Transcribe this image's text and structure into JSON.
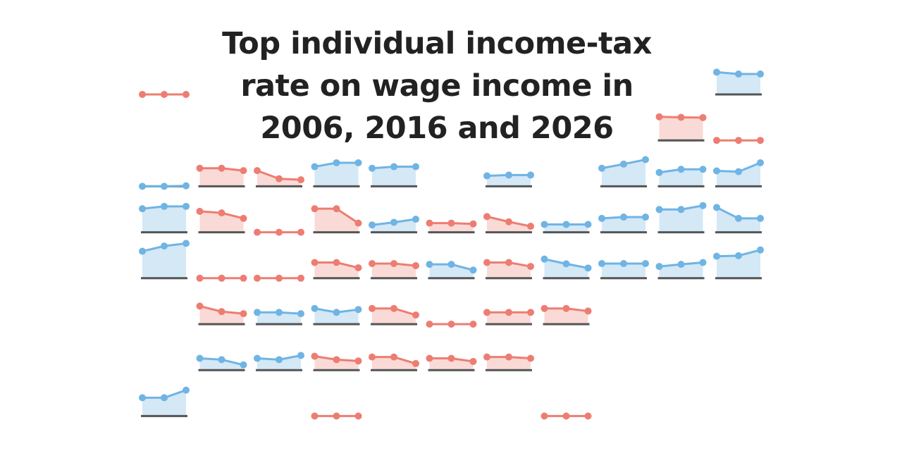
{
  "title_lines": [
    "Top individual income-tax",
    "rate on wage income in",
    "2006, 2016 and 2026"
  ],
  "colors": {
    "increase_line": "#6fb4e4",
    "increase_fill": "#d4e8f6",
    "decrease_line": "#ed7d72",
    "decrease_fill": "#fadad6",
    "baseline": "#555555"
  },
  "chart_data": {
    "type": "line",
    "x": [
      "2006",
      "2016",
      "2026"
    ],
    "ylim": [
      0,
      14
    ],
    "grid": false,
    "legend": "none",
    "tiles": [
      {
        "row": 0,
        "col": 0,
        "values": [
          0,
          0,
          0
        ],
        "change": "none"
      },
      {
        "row": 0,
        "col": 10,
        "values": [
          8.5,
          7.8,
          7.8
        ],
        "change": "up"
      },
      {
        "row": 1,
        "col": 9,
        "values": [
          9.0,
          8.8,
          8.7
        ],
        "change": "down"
      },
      {
        "row": 1,
        "col": 10,
        "values": [
          0,
          0,
          0
        ],
        "change": "none"
      },
      {
        "row": 2,
        "col": 0,
        "values": [
          0.0,
          0.0,
          0.2
        ],
        "change": "up"
      },
      {
        "row": 2,
        "col": 1,
        "values": [
          6.9,
          6.9,
          6.0
        ],
        "change": "down"
      },
      {
        "row": 2,
        "col": 2,
        "values": [
          6.0,
          2.9,
          2.5
        ],
        "change": "down"
      },
      {
        "row": 2,
        "col": 3,
        "values": [
          7.5,
          9.0,
          9.0
        ],
        "change": "up"
      },
      {
        "row": 2,
        "col": 4,
        "values": [
          6.9,
          7.5,
          7.5
        ],
        "change": "up"
      },
      {
        "row": 2,
        "col": 6,
        "values": [
          4.0,
          4.3,
          4.3
        ],
        "change": "up"
      },
      {
        "row": 2,
        "col": 8,
        "values": [
          6.9,
          8.5,
          10.2
        ],
        "change": "up"
      },
      {
        "row": 2,
        "col": 9,
        "values": [
          5.3,
          6.5,
          6.5
        ],
        "change": "up"
      },
      {
        "row": 2,
        "col": 10,
        "values": [
          5.9,
          5.6,
          9.0
        ],
        "change": "up"
      },
      {
        "row": 3,
        "col": 0,
        "values": [
          9.0,
          9.9,
          9.9
        ],
        "change": "up"
      },
      {
        "row": 3,
        "col": 1,
        "values": [
          8.0,
          7.4,
          5.3
        ],
        "change": "down"
      },
      {
        "row": 3,
        "col": 2,
        "values": [
          0,
          0,
          0
        ],
        "change": "none"
      },
      {
        "row": 3,
        "col": 3,
        "values": [
          9.0,
          9.0,
          3.5
        ],
        "change": "down"
      },
      {
        "row": 3,
        "col": 4,
        "values": [
          2.8,
          3.8,
          5.0
        ],
        "change": "up"
      },
      {
        "row": 3,
        "col": 5,
        "values": [
          3.5,
          3.5,
          3.2
        ],
        "change": "down"
      },
      {
        "row": 3,
        "col": 6,
        "values": [
          6.0,
          4.0,
          2.3
        ],
        "change": "down"
      },
      {
        "row": 3,
        "col": 7,
        "values": [
          3.0,
          3.0,
          3.0
        ],
        "change": "up"
      },
      {
        "row": 3,
        "col": 8,
        "values": [
          5.3,
          5.8,
          5.8
        ],
        "change": "up"
      },
      {
        "row": 3,
        "col": 9,
        "values": [
          8.7,
          8.7,
          10.2
        ],
        "change": "up"
      },
      {
        "row": 3,
        "col": 10,
        "values": [
          9.5,
          5.3,
          5.3
        ],
        "change": "up"
      },
      {
        "row": 4,
        "col": 0,
        "values": [
          10.3,
          12.3,
          13.3
        ],
        "change": "up"
      },
      {
        "row": 4,
        "col": 1,
        "values": [
          0,
          0,
          0
        ],
        "change": "none"
      },
      {
        "row": 4,
        "col": 2,
        "values": [
          0,
          0,
          0
        ],
        "change": "none"
      },
      {
        "row": 4,
        "col": 3,
        "values": [
          6.0,
          6.0,
          4.0
        ],
        "change": "down"
      },
      {
        "row": 4,
        "col": 4,
        "values": [
          5.6,
          5.6,
          4.8
        ],
        "change": "down"
      },
      {
        "row": 4,
        "col": 5,
        "values": [
          5.3,
          5.3,
          3.1
        ],
        "change": "up"
      },
      {
        "row": 4,
        "col": 6,
        "values": [
          6.0,
          6.0,
          4.5
        ],
        "change": "down"
      },
      {
        "row": 4,
        "col": 7,
        "values": [
          7.3,
          5.5,
          3.9
        ],
        "change": "up"
      },
      {
        "row": 4,
        "col": 8,
        "values": [
          5.6,
          5.6,
          5.6
        ],
        "change": "up"
      },
      {
        "row": 4,
        "col": 9,
        "values": [
          4.5,
          5.3,
          6.0
        ],
        "change": "up"
      },
      {
        "row": 4,
        "col": 10,
        "values": [
          8.4,
          8.6,
          10.8
        ],
        "change": "up"
      },
      {
        "row": 5,
        "col": 1,
        "values": [
          6.9,
          4.8,
          4.0
        ],
        "change": "down"
      },
      {
        "row": 5,
        "col": 2,
        "values": [
          4.5,
          4.5,
          4.0
        ],
        "change": "up"
      },
      {
        "row": 5,
        "col": 3,
        "values": [
          6.0,
          4.5,
          5.6
        ],
        "change": "up"
      },
      {
        "row": 5,
        "col": 4,
        "values": [
          6.0,
          6.0,
          3.5
        ],
        "change": "down"
      },
      {
        "row": 5,
        "col": 5,
        "values": [
          0,
          0,
          0
        ],
        "change": "none"
      },
      {
        "row": 5,
        "col": 6,
        "values": [
          4.5,
          4.5,
          4.5
        ],
        "change": "down"
      },
      {
        "row": 5,
        "col": 7,
        "values": [
          6.0,
          6.0,
          5.0
        ],
        "change": "down"
      },
      {
        "row": 6,
        "col": 1,
        "values": [
          4.5,
          4.0,
          2.0
        ],
        "change": "up"
      },
      {
        "row": 6,
        "col": 2,
        "values": [
          4.5,
          4.0,
          5.6
        ],
        "change": "up"
      },
      {
        "row": 6,
        "col": 3,
        "values": [
          5.3,
          4.0,
          3.5
        ],
        "change": "down"
      },
      {
        "row": 6,
        "col": 4,
        "values": [
          5.0,
          5.0,
          2.5
        ],
        "change": "down"
      },
      {
        "row": 6,
        "col": 5,
        "values": [
          4.5,
          4.5,
          3.3
        ],
        "change": "down"
      },
      {
        "row": 6,
        "col": 6,
        "values": [
          5.0,
          5.0,
          4.5
        ],
        "change": "down"
      },
      {
        "row": 7,
        "col": 0,
        "values": [
          7.0,
          7.0,
          9.9
        ],
        "change": "up"
      },
      {
        "row": 7,
        "col": 3,
        "values": [
          0,
          0,
          0
        ],
        "change": "none"
      },
      {
        "row": 7,
        "col": 7,
        "values": [
          0,
          0,
          0
        ],
        "change": "none"
      }
    ]
  }
}
